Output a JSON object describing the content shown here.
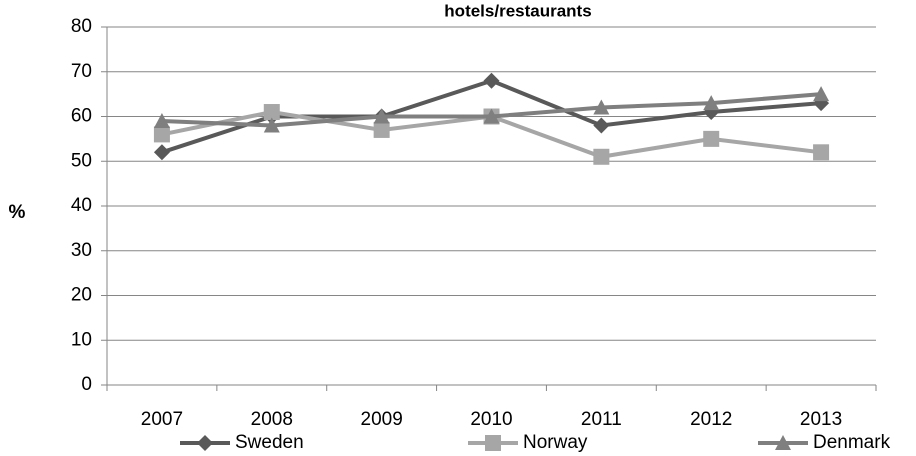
{
  "chart_data": {
    "type": "line",
    "title": "hotels/restaurants",
    "y_label": "%",
    "categories": [
      "2007",
      "2008",
      "2009",
      "2010",
      "2011",
      "2012",
      "2013"
    ],
    "series": [
      {
        "name": "Sweden",
        "color": "#595959",
        "marker": "diamond",
        "values": [
          52,
          60,
          60,
          68,
          58,
          61,
          63
        ]
      },
      {
        "name": "Norway",
        "color": "#a6a6a6",
        "marker": "square",
        "values": [
          56,
          61,
          57,
          60,
          51,
          55,
          52
        ]
      },
      {
        "name": "Denmark",
        "color": "#7f7f7f",
        "marker": "triangle",
        "values": [
          59,
          58,
          60,
          60,
          62,
          63,
          65
        ]
      }
    ],
    "ylim": [
      0,
      80
    ],
    "yticks": [
      0,
      10,
      20,
      30,
      40,
      50,
      60,
      70,
      80
    ],
    "grid": true,
    "legend": "bottom"
  }
}
